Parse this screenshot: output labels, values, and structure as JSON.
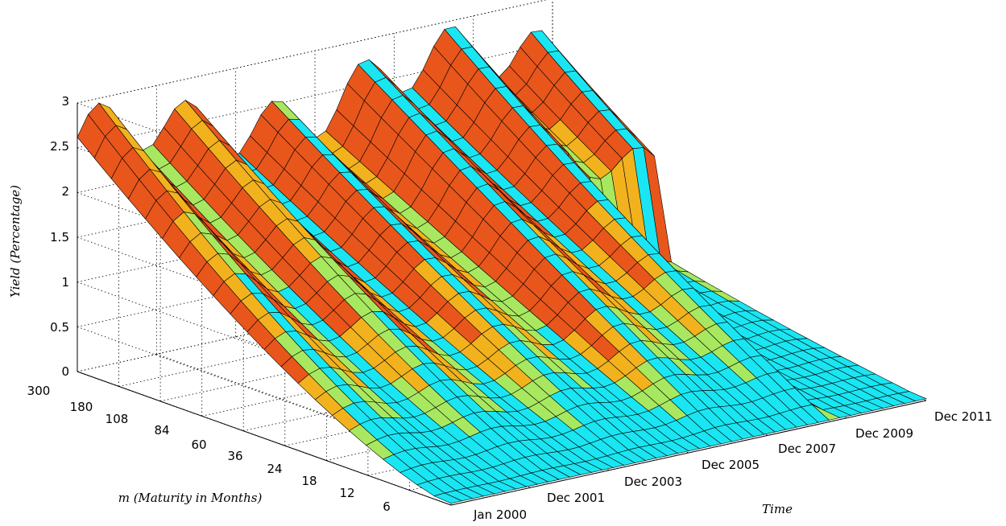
{
  "chart_data": {
    "type": "surface",
    "title": "",
    "xlabel": "Time",
    "ylabel": "m (Maturity in Months)",
    "zlabel": "Yield (Percentage)",
    "time_ticks": [
      "Jan 2000",
      "Dec 2001",
      "Dec 2003",
      "Dec 2005",
      "Dec 2007",
      "Dec 2009",
      "Dec 2011"
    ],
    "maturity_ticks": [
      "6",
      "12",
      "18",
      "24",
      "36",
      "60",
      "84",
      "108",
      "180",
      "300"
    ],
    "yield_ticks": [
      "0",
      "0.5",
      "1",
      "1.5",
      "2",
      "2.5",
      "3"
    ],
    "zlim": [
      0,
      3
    ],
    "grid": true,
    "colormap": "jet",
    "surface_color": "#19e6f2",
    "series": [
      {
        "name": "Dec 2001",
        "maturity_months": [
          6,
          12,
          18,
          24,
          36,
          60,
          84,
          108,
          180,
          300
        ],
        "yield": [
          0.05,
          0.25,
          0.6,
          0.9,
          1.4,
          2.0,
          2.3,
          2.5,
          2.6,
          2.4
        ]
      },
      {
        "name": "Dec 2005",
        "maturity_months": [
          6,
          12,
          18,
          24,
          36,
          60,
          84,
          108,
          180,
          300
        ],
        "yield": [
          0.05,
          0.15,
          0.35,
          0.6,
          1.0,
          1.7,
          2.2,
          2.6,
          2.8,
          2.8
        ]
      },
      {
        "name": "Dec 2009",
        "maturity_months": [
          6,
          12,
          18,
          24,
          36,
          60,
          84,
          108,
          180,
          300
        ],
        "yield": [
          0.02,
          0.05,
          0.1,
          0.2,
          0.4,
          0.9,
          1.5,
          2.0,
          2.5,
          2.5
        ]
      }
    ]
  }
}
